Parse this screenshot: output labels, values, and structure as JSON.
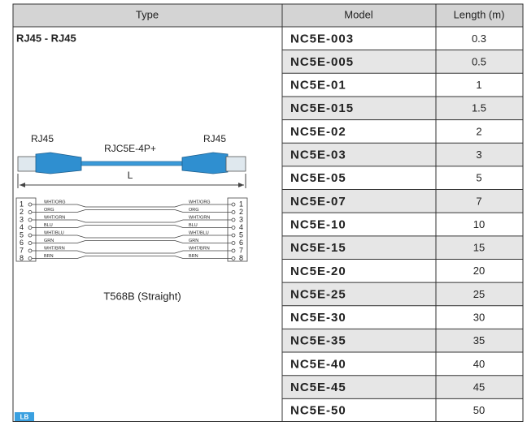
{
  "header": {
    "type": "Type",
    "model": "Model",
    "length": "Length (m)"
  },
  "type_cell": {
    "title": "RJ45 - RJ45",
    "connector_left": "RJ45",
    "connector_right": "RJ45",
    "cable": "RJC5E-4P+",
    "length_mark": "L",
    "wiring": {
      "pins": [
        "1",
        "2",
        "3",
        "4",
        "5",
        "6",
        "7",
        "8"
      ],
      "left_labels": [
        "WHT/ORG",
        "ORG",
        "WHT/GRN",
        "BLU",
        "WHT/BLU",
        "GRN",
        "WHT/BRN",
        "BRN"
      ],
      "right_labels": [
        "WHT/ORG",
        "ORG",
        "WHT/GRN",
        "BLU",
        "WHT/BLU",
        "GRN",
        "WHT/BRN",
        "BRN"
      ]
    },
    "caption": "T568B (Straight)",
    "badge": "LB"
  },
  "table": {
    "rows": [
      [
        "NC5E-003",
        "0.3"
      ],
      [
        "NC5E-005",
        "0.5"
      ],
      [
        "NC5E-01",
        "1"
      ],
      [
        "NC5E-015",
        "1.5"
      ],
      [
        "NC5E-02",
        "2"
      ],
      [
        "NC5E-03",
        "3"
      ],
      [
        "NC5E-05",
        "5"
      ],
      [
        "NC5E-07",
        "7"
      ],
      [
        "NC5E-10",
        "10"
      ],
      [
        "NC5E-15",
        "15"
      ],
      [
        "NC5E-20",
        "20"
      ],
      [
        "NC5E-25",
        "25"
      ],
      [
        "NC5E-30",
        "30"
      ],
      [
        "NC5E-35",
        "35"
      ],
      [
        "NC5E-40",
        "40"
      ],
      [
        "NC5E-45",
        "45"
      ],
      [
        "NC5E-50",
        "50"
      ]
    ]
  }
}
